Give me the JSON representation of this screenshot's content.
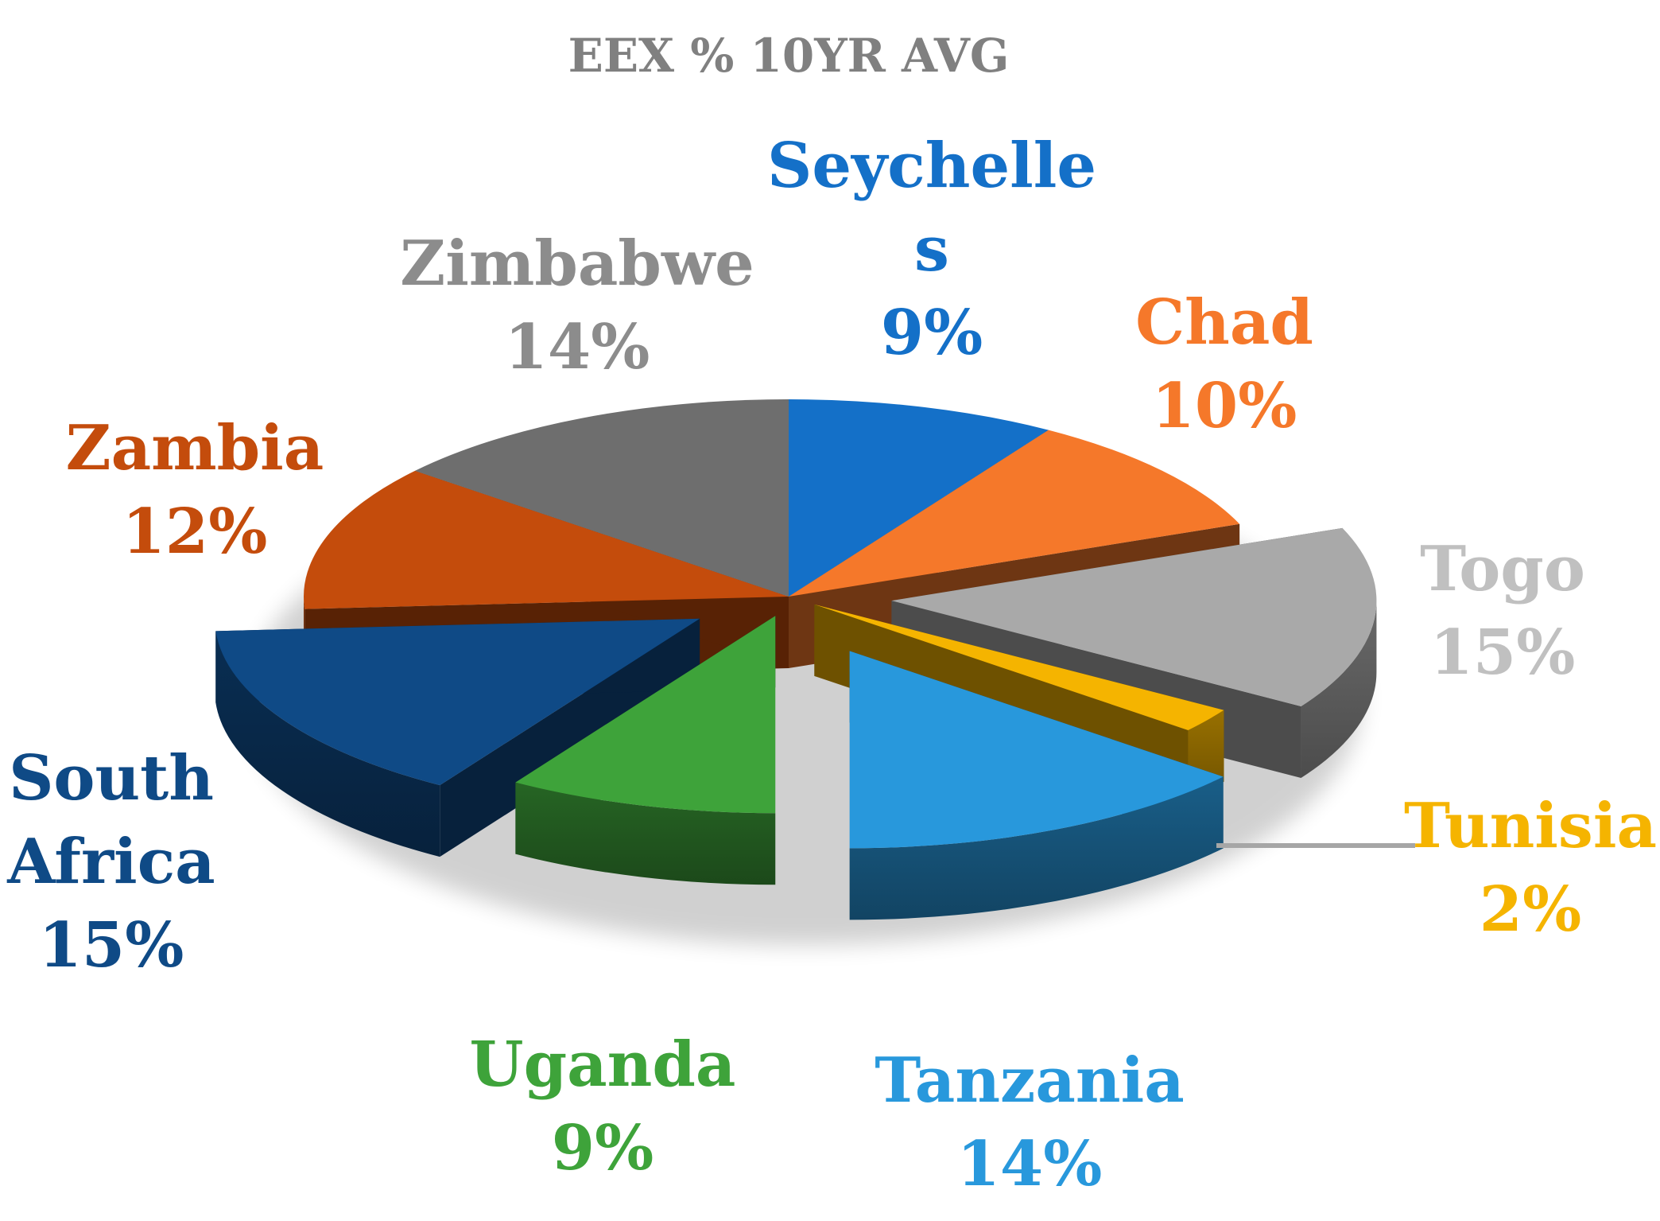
{
  "chart_data": {
    "type": "pie",
    "title": "EEX % 10YR AVG",
    "style": "3d-exploded",
    "slices": [
      {
        "name": "Seychelles",
        "label_lines": [
          "Seychelle",
          "s"
        ],
        "value": 9,
        "value_label": "9%",
        "color": "#1470c8"
      },
      {
        "name": "Chad",
        "label_lines": [
          "Chad"
        ],
        "value": 10,
        "value_label": "10%",
        "color": "#f5782a"
      },
      {
        "name": "Togo",
        "label_lines": [
          "Togo"
        ],
        "value": 15,
        "value_label": "15%",
        "color": "#a9a9a9"
      },
      {
        "name": "Tunisia",
        "label_lines": [
          "Tunisia"
        ],
        "value": 2,
        "value_label": "2%",
        "color": "#f5b400"
      },
      {
        "name": "Tanzania",
        "label_lines": [
          "Tanzania"
        ],
        "value": 14,
        "value_label": "14%",
        "color": "#2898dc"
      },
      {
        "name": "Uganda",
        "label_lines": [
          "Uganda"
        ],
        "value": 9,
        "value_label": "9%",
        "color": "#3ea33a"
      },
      {
        "name": "South Africa",
        "label_lines": [
          "South",
          "Africa"
        ],
        "value": 15,
        "value_label": "15%",
        "color": "#0f4a86"
      },
      {
        "name": "Zambia",
        "label_lines": [
          "Zambia"
        ],
        "value": 12,
        "value_label": "12%",
        "color": "#c44c0c"
      },
      {
        "name": "Zimbabwe",
        "label_lines": [
          "Zimbabwe"
        ],
        "value": 14,
        "value_label": "14%",
        "color": "#6e6e6e"
      }
    ],
    "label_colors": {
      "Seychelles": "#1470c8",
      "Chad": "#f5782a",
      "Togo": "#c0c0c0",
      "Tunisia": "#f5b400",
      "Tanzania": "#2898dc",
      "Uganda": "#3ea33a",
      "South Africa": "#0f4a86",
      "Zambia": "#c44c0c",
      "Zimbabwe": "#8c8c8c"
    },
    "title_color": "#808080"
  }
}
